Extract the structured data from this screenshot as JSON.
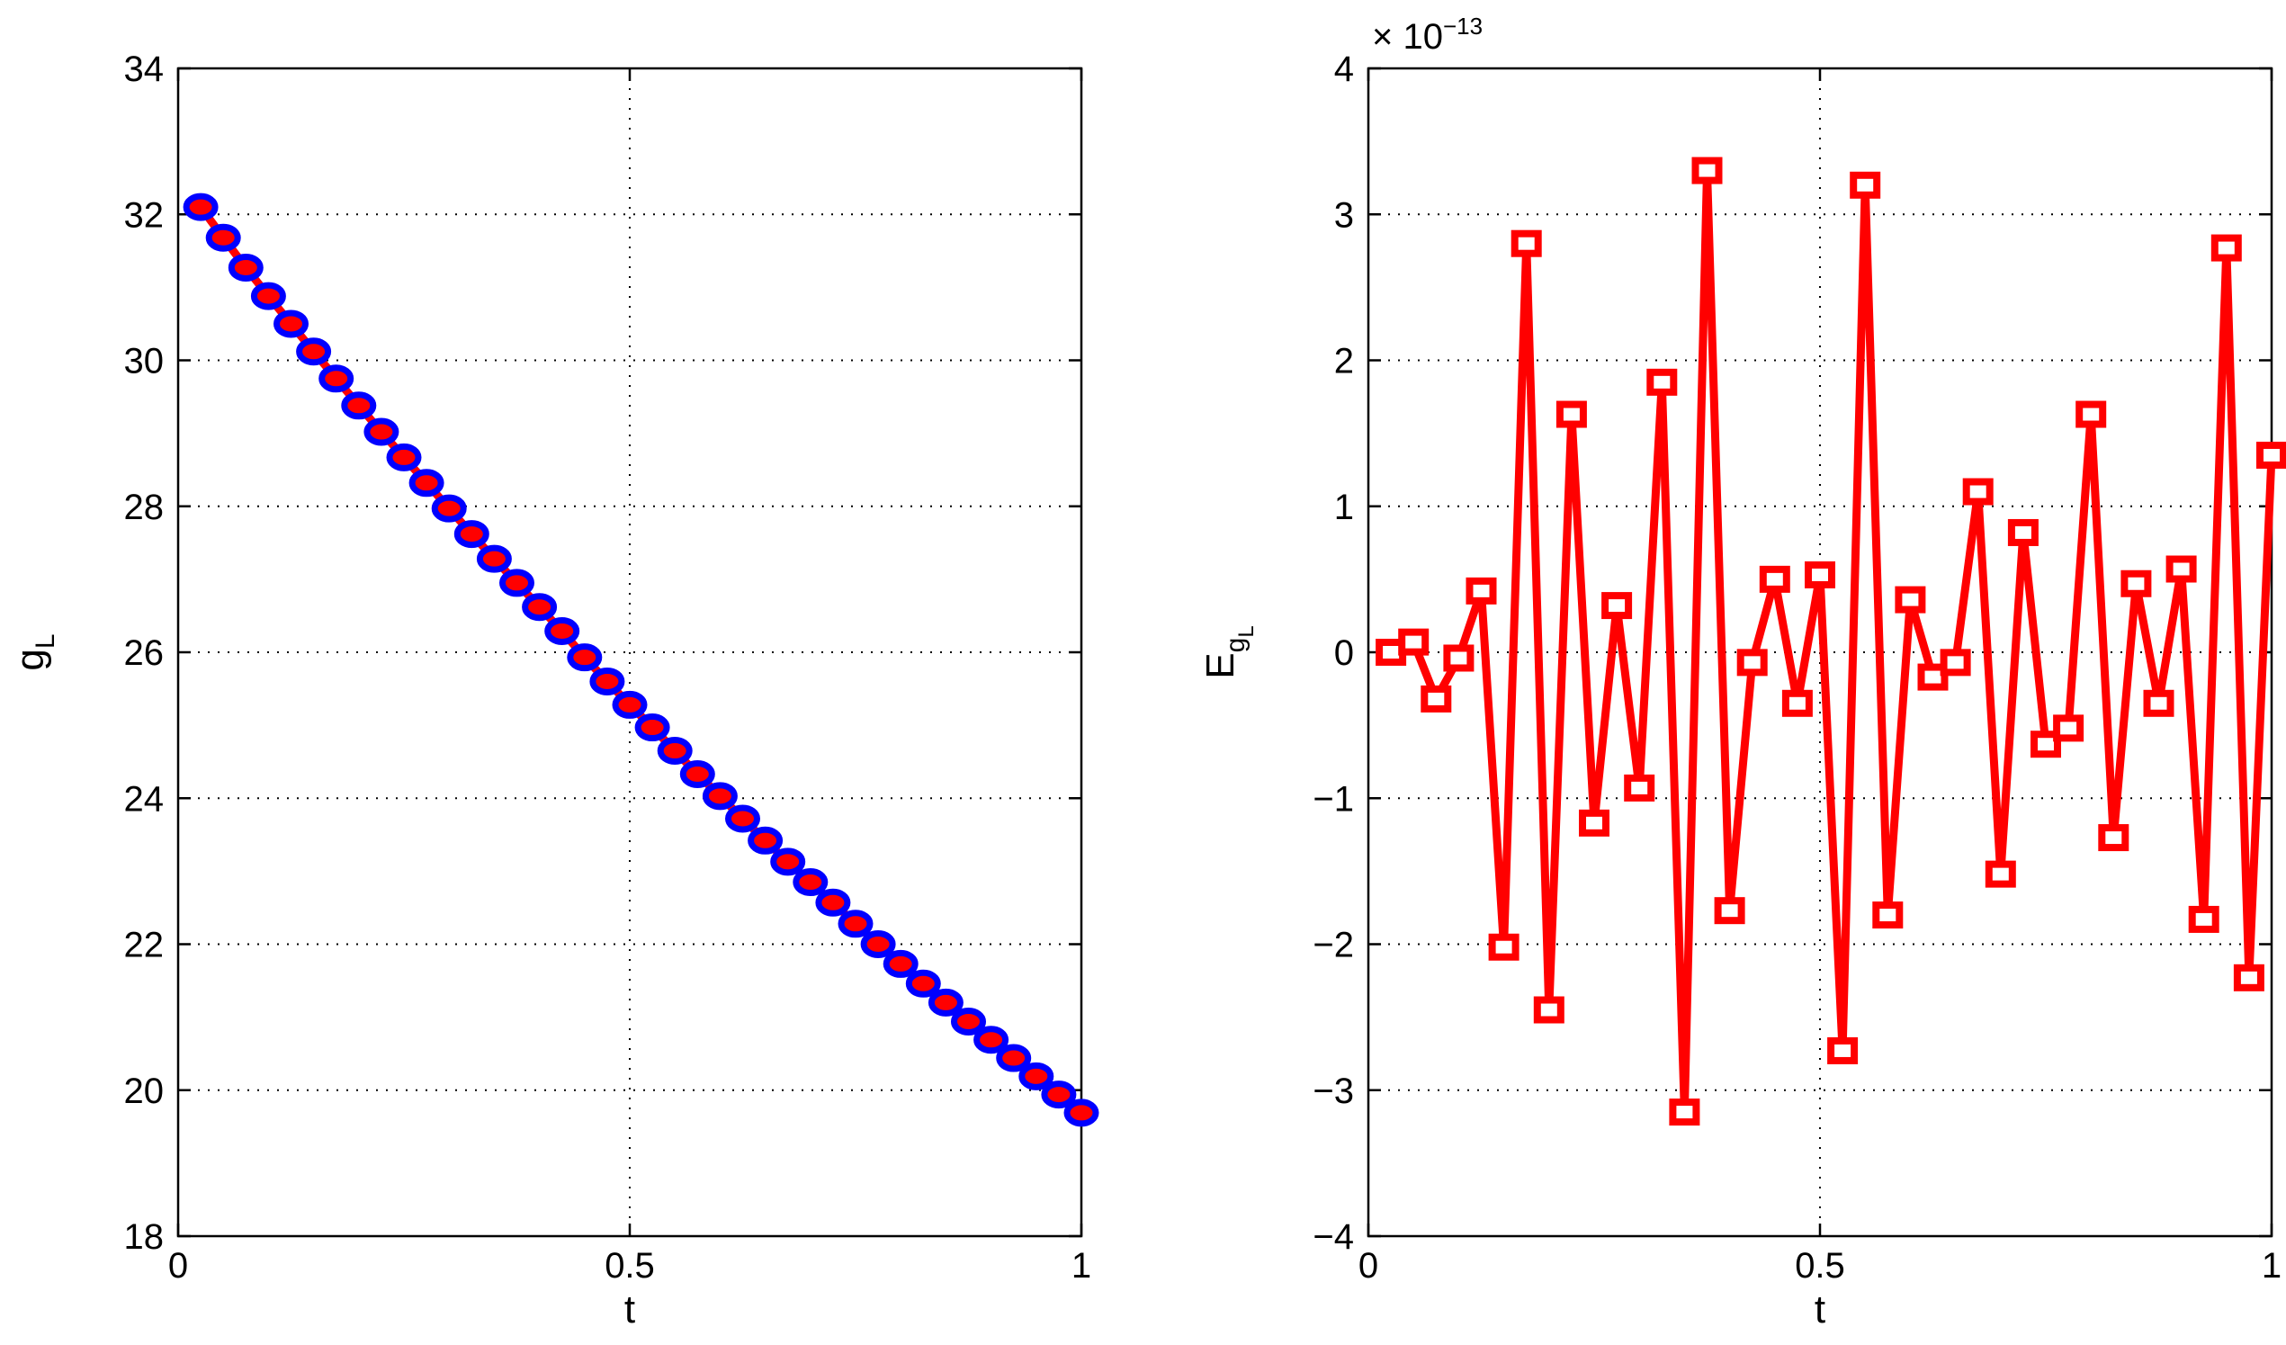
{
  "chart_data": [
    {
      "type": "line",
      "xlabel": "t",
      "ylabel": "g",
      "ylabel_subscript": "L",
      "xlim": [
        0,
        1
      ],
      "ylim": [
        18,
        34
      ],
      "xticks": [
        0,
        0.5,
        1
      ],
      "xtick_labels": [
        "0",
        "0.5",
        "1"
      ],
      "yticks": [
        18,
        20,
        22,
        24,
        26,
        28,
        30,
        32,
        34
      ],
      "ytick_labels": [
        "18",
        "20",
        "22",
        "24",
        "26",
        "28",
        "30",
        "32",
        "34"
      ],
      "grid": true,
      "series": [
        {
          "color": "#ff0000",
          "marker": "o",
          "marker_color": "#0000ff",
          "x": [
            0.025,
            0.05,
            0.075,
            0.1,
            0.125,
            0.15,
            0.175,
            0.2,
            0.225,
            0.25,
            0.275,
            0.3,
            0.325,
            0.35,
            0.375,
            0.4,
            0.425,
            0.45,
            0.475,
            0.5,
            0.525,
            0.55,
            0.575,
            0.6,
            0.625,
            0.65,
            0.675,
            0.7,
            0.725,
            0.75,
            0.775,
            0.8,
            0.825,
            0.85,
            0.875,
            0.9,
            0.925,
            0.95,
            0.975,
            1.0
          ],
          "y": [
            32.1,
            31.68,
            31.27,
            30.88,
            30.5,
            30.12,
            29.75,
            29.38,
            29.02,
            28.67,
            28.32,
            27.97,
            27.62,
            27.28,
            26.95,
            26.62,
            26.29,
            25.93,
            25.6,
            25.28,
            24.97,
            24.65,
            24.33,
            24.03,
            23.72,
            23.42,
            23.13,
            22.85,
            22.57,
            22.28,
            22.0,
            21.73,
            21.46,
            21.2,
            20.94,
            20.69,
            20.44,
            20.19,
            19.94,
            19.69
          ]
        }
      ]
    },
    {
      "type": "line",
      "xlabel": "t",
      "ylabel": "E",
      "ylabel_subscript": "g",
      "ylabel_subsubscript": "L",
      "scale_factor": "× 10",
      "scale_exponent": "−13",
      "xlim": [
        0,
        1
      ],
      "ylim": [
        -4,
        4
      ],
      "xticks": [
        0,
        0.5,
        1
      ],
      "xtick_labels": [
        "0",
        "0.5",
        "1"
      ],
      "yticks": [
        -4,
        -3,
        -2,
        -1,
        0,
        1,
        2,
        3,
        4
      ],
      "ytick_labels": [
        "−4",
        "−3",
        "−2",
        "−1",
        "0",
        "1",
        "2",
        "3",
        "4"
      ],
      "grid": true,
      "series": [
        {
          "color": "#ff0000",
          "marker": "s",
          "x": [
            0.025,
            0.05,
            0.075,
            0.1,
            0.125,
            0.15,
            0.175,
            0.2,
            0.225,
            0.25,
            0.275,
            0.3,
            0.325,
            0.35,
            0.375,
            0.4,
            0.425,
            0.45,
            0.475,
            0.5,
            0.525,
            0.55,
            0.575,
            0.6,
            0.625,
            0.65,
            0.675,
            0.7,
            0.725,
            0.75,
            0.775,
            0.8,
            0.825,
            0.85,
            0.875,
            0.9,
            0.925,
            0.95,
            0.975,
            1.0
          ],
          "y": [
            0.0,
            0.07,
            -0.32,
            -0.04,
            0.42,
            -2.02,
            2.8,
            -2.45,
            1.63,
            -1.17,
            0.32,
            -0.93,
            1.85,
            -3.15,
            3.3,
            -1.77,
            -0.07,
            0.5,
            -0.35,
            0.53,
            -2.73,
            3.2,
            -1.8,
            0.36,
            -0.17,
            -0.07,
            1.1,
            -1.52,
            0.82,
            -0.63,
            -0.52,
            1.63,
            -1.27,
            0.47,
            -0.35,
            0.57,
            -1.83,
            2.77,
            -2.23,
            1.35
          ]
        }
      ]
    }
  ]
}
